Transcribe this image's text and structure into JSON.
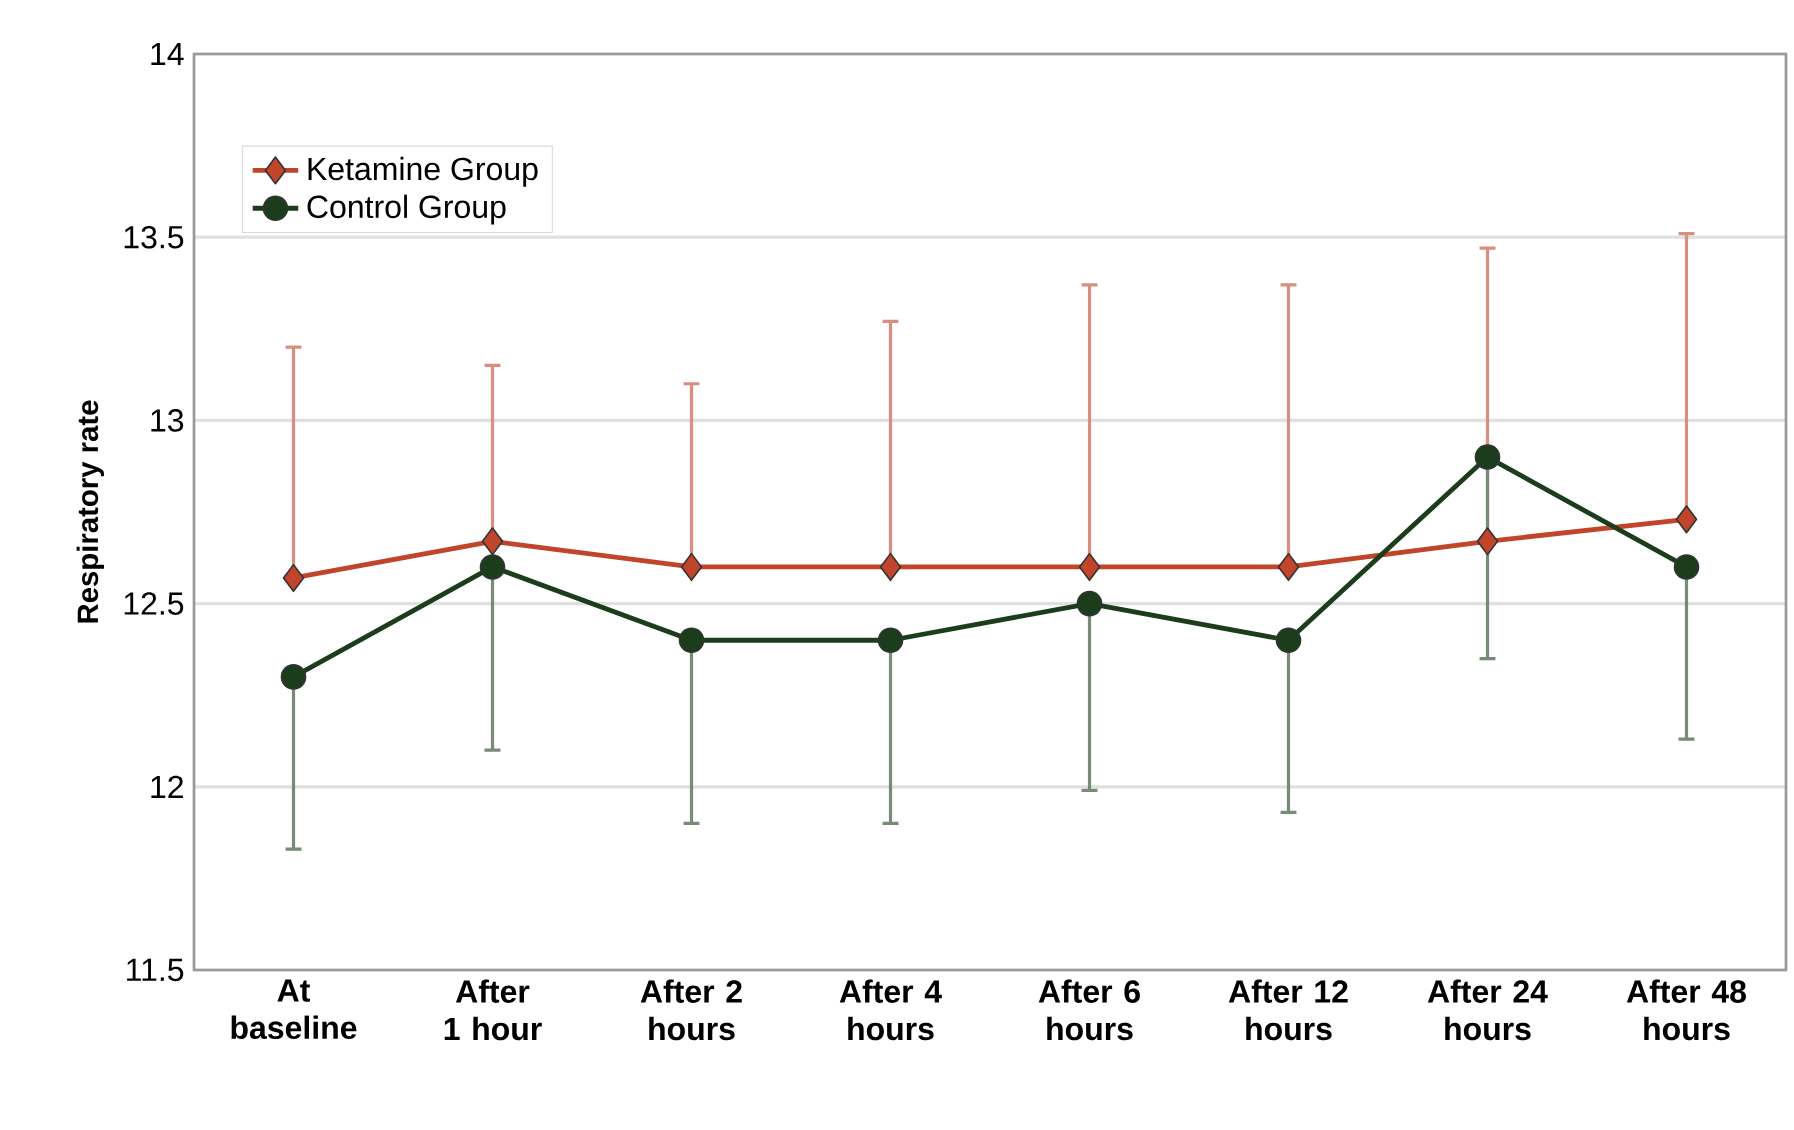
{
  "chart_data": {
    "type": "line",
    "ylabel": "Respiratory rate",
    "categories": [
      "At baseline",
      "After 1 hour",
      "After 2 hours",
      "After 4 hours",
      "After 6 hours",
      "After 12 hours",
      "After 24 hours",
      "After 48 hours"
    ],
    "series": [
      {
        "name": "Ketamine Group",
        "color": "#c0452a",
        "marker": "diamond",
        "values": [
          12.57,
          12.67,
          12.6,
          12.6,
          12.6,
          12.6,
          12.67,
          12.73
        ],
        "errors": [
          [
            12.57,
            13.2
          ],
          [
            12.67,
            13.15
          ],
          [
            12.6,
            13.1
          ],
          [
            12.6,
            13.27
          ],
          [
            12.6,
            13.37
          ],
          [
            12.6,
            13.37
          ],
          [
            12.67,
            13.47
          ],
          [
            12.73,
            13.51
          ]
        ]
      },
      {
        "name": "Control Group",
        "color": "#1c3d1c",
        "marker": "circle",
        "values": [
          12.3,
          12.6,
          12.4,
          12.4,
          12.5,
          12.4,
          12.9,
          12.6
        ],
        "errors": [
          [
            11.83,
            12.3
          ],
          [
            12.1,
            12.6
          ],
          [
            11.9,
            12.4
          ],
          [
            11.9,
            12.4
          ],
          [
            11.99,
            12.5
          ],
          [
            11.93,
            12.4
          ],
          [
            12.35,
            12.9
          ],
          [
            12.13,
            12.6
          ]
        ]
      }
    ],
    "ylim": [
      11.5,
      14
    ],
    "yticks": [
      11.5,
      12,
      12.5,
      13,
      13.5,
      14
    ],
    "grid": "y",
    "legend": "top left",
    "line_style": "solid"
  }
}
